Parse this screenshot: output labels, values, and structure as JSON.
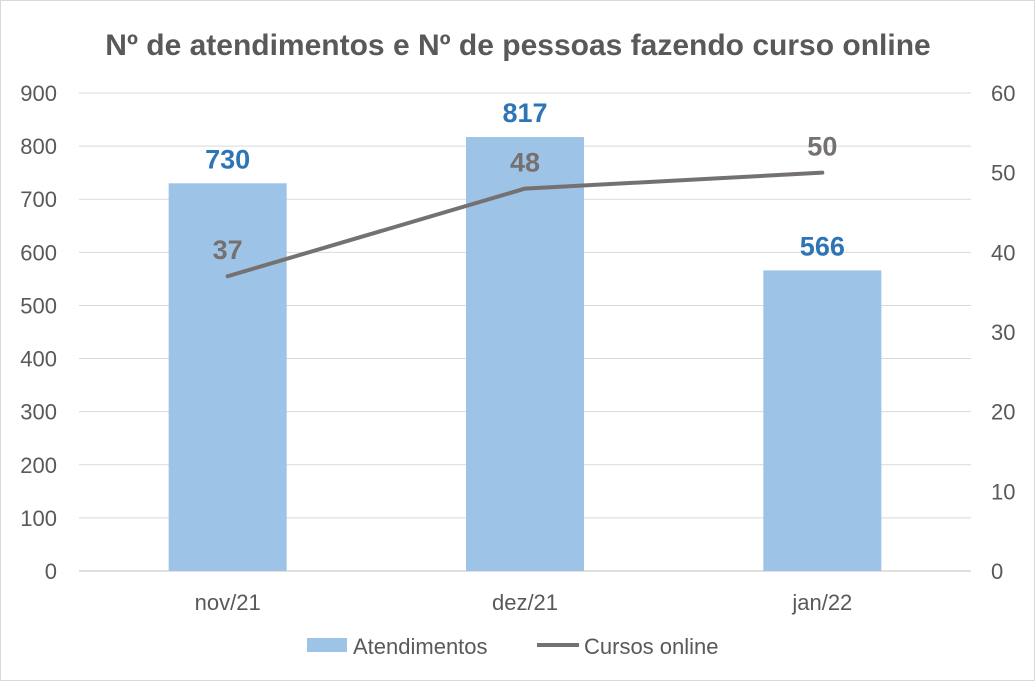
{
  "chart_data": {
    "type": "bar",
    "title": "Nº de atendimentos e Nº de pessoas fazendo curso online",
    "categories": [
      "nov/21",
      "dez/21",
      "jan/22"
    ],
    "series": [
      {
        "name": "Atendimentos",
        "type": "bar",
        "axis": "left",
        "values": [
          730,
          817,
          566
        ],
        "color": "#9dc3e6",
        "label_color": "#2e75b6"
      },
      {
        "name": "Cursos online",
        "type": "line",
        "axis": "right",
        "values": [
          37,
          48,
          50
        ],
        "color": "#767171",
        "label_color": "#767171"
      }
    ],
    "ylim": [
      0,
      900
    ],
    "y_ticks": [
      "0",
      "100",
      "200",
      "300",
      "400",
      "500",
      "600",
      "700",
      "800",
      "900"
    ],
    "y2lim": [
      0,
      60
    ],
    "y2_ticks": [
      "0",
      "10",
      "20",
      "30",
      "40",
      "50",
      "60"
    ],
    "grid": true,
    "legend_position": "bottom"
  }
}
